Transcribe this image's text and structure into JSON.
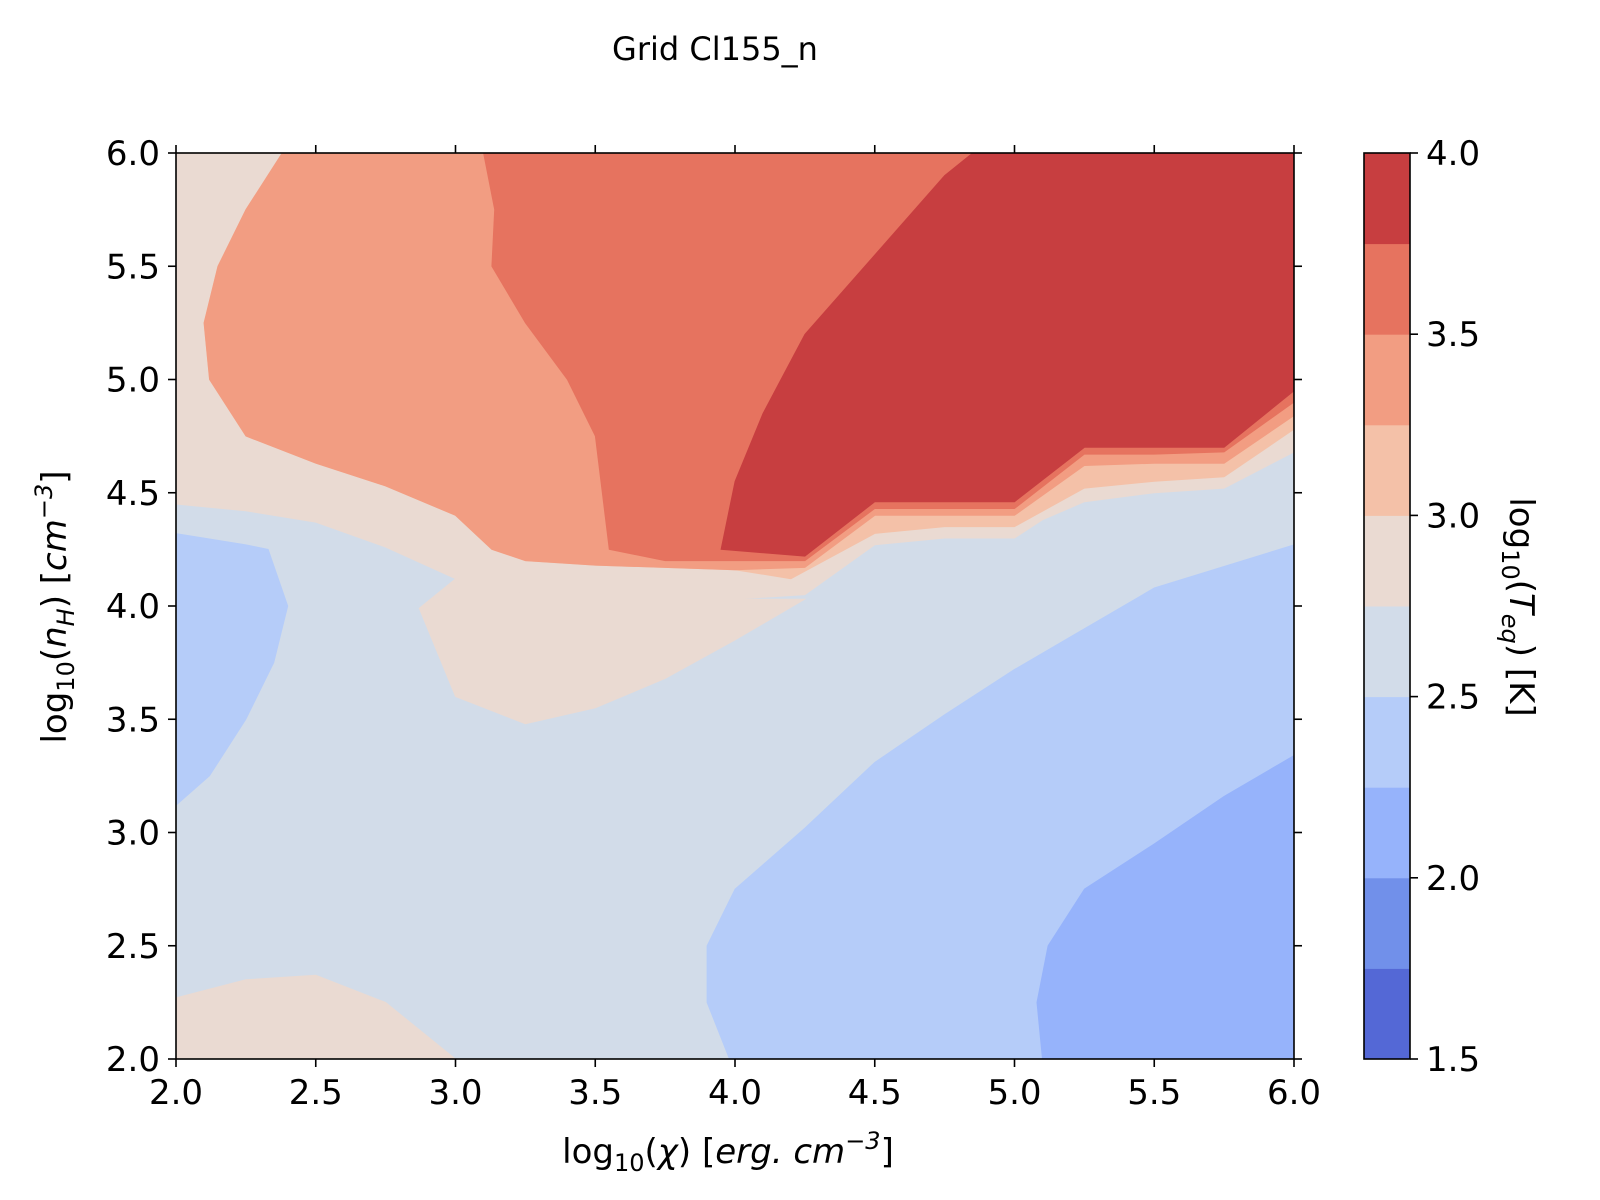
{
  "chart_data": {
    "type": "contour",
    "title": "Grid Cl155_n",
    "xlabel": {
      "base": "log",
      "sub": "10",
      "open": "(",
      "var": "χ",
      "close": ")",
      "unit_open": " [",
      "unit": "erg. cm",
      "sup": "−3",
      "unit_close": "]"
    },
    "ylabel": {
      "base": "log",
      "sub": "10",
      "open": "(",
      "var": "n",
      "var_sub": "H",
      "close": ")",
      "unit_open": " [",
      "unit": "cm",
      "sup": "−3",
      "unit_close": "]"
    },
    "colorbar_label": {
      "base": "log",
      "sub": "10",
      "open": "(",
      "var": "T",
      "var_sub": "eq",
      "close": ")",
      "unit": " [K]"
    },
    "xlim": [
      2.0,
      6.0
    ],
    "ylim": [
      2.0,
      6.0
    ],
    "xticks": [
      "2.0",
      "2.5",
      "3.0",
      "3.5",
      "4.0",
      "4.5",
      "5.0",
      "5.5",
      "6.0"
    ],
    "yticks": [
      "2.0",
      "2.5",
      "3.0",
      "3.5",
      "4.0",
      "4.5",
      "5.0",
      "5.5",
      "6.0"
    ],
    "colorbar_ticks": [
      "1.5",
      "2.0",
      "2.5",
      "3.0",
      "3.5",
      "4.0"
    ],
    "levels": [
      1.5,
      1.75,
      2.0,
      2.25,
      2.5,
      2.75,
      3.0,
      3.25,
      3.5,
      3.75,
      4.0
    ],
    "level_colors": [
      "#5468d6",
      "#7190ea",
      "#96b3fb",
      "#b5ccf9",
      "#d2dce9",
      "#eadad2",
      "#f4c1a8",
      "#f29d82",
      "#e6735f",
      "#c73e40"
    ],
    "regions": [
      {
        "band": 4,
        "points": [
          [
            2.0,
            2.0
          ],
          [
            6.0,
            2.0
          ],
          [
            6.0,
            6.0
          ],
          [
            2.0,
            6.0
          ]
        ]
      },
      {
        "band": 5,
        "points": [
          [
            2.0,
            4.45
          ],
          [
            2.25,
            4.42
          ],
          [
            2.5,
            4.37
          ],
          [
            2.75,
            4.26
          ],
          [
            3.0,
            4.12
          ],
          [
            3.25,
            4.05
          ],
          [
            3.5,
            4.03
          ],
          [
            4.0,
            4.03
          ],
          [
            4.25,
            4.05
          ],
          [
            4.5,
            4.27
          ],
          [
            4.75,
            4.3
          ],
          [
            5.0,
            4.3
          ],
          [
            5.1,
            4.38
          ],
          [
            5.25,
            4.46
          ],
          [
            5.5,
            4.5
          ],
          [
            5.75,
            4.52
          ],
          [
            6.0,
            4.68
          ],
          [
            6.0,
            6.0
          ],
          [
            2.0,
            6.0
          ]
        ]
      },
      {
        "band": 5,
        "points": [
          [
            2.0,
            2.0
          ],
          [
            3.0,
            2.0
          ],
          [
            2.9,
            2.1
          ],
          [
            2.75,
            2.25
          ],
          [
            2.5,
            2.37
          ],
          [
            2.25,
            2.35
          ],
          [
            2.0,
            2.27
          ]
        ]
      },
      {
        "band": 5,
        "points": [
          [
            2.87,
            3.99
          ],
          [
            3.0,
            3.6
          ],
          [
            3.25,
            3.48
          ],
          [
            3.5,
            3.55
          ],
          [
            3.75,
            3.68
          ],
          [
            4.0,
            3.85
          ],
          [
            4.25,
            4.03
          ],
          [
            4.0,
            4.03
          ],
          [
            3.5,
            4.03
          ],
          [
            3.25,
            4.05
          ],
          [
            3.0,
            4.12
          ]
        ]
      },
      {
        "band": 6,
        "points": [
          [
            2.0,
            6.0
          ],
          [
            2.38,
            6.0
          ],
          [
            2.25,
            5.75
          ],
          [
            2.15,
            5.5
          ],
          [
            2.1,
            5.25
          ],
          [
            2.12,
            5.0
          ],
          [
            2.25,
            4.75
          ],
          [
            2.5,
            4.63
          ],
          [
            2.75,
            4.53
          ],
          [
            3.0,
            4.4
          ],
          [
            3.13,
            4.25
          ],
          [
            3.25,
            4.2
          ],
          [
            3.5,
            4.18
          ],
          [
            4.0,
            4.16
          ],
          [
            4.2,
            4.12
          ],
          [
            4.5,
            4.32
          ],
          [
            4.75,
            4.35
          ],
          [
            5.0,
            4.35
          ],
          [
            5.25,
            4.52
          ],
          [
            5.5,
            4.55
          ],
          [
            5.75,
            4.57
          ],
          [
            6.0,
            4.78
          ],
          [
            6.0,
            6.0
          ]
        ]
      },
      {
        "band": 7,
        "points": [
          [
            2.38,
            6.0
          ],
          [
            2.25,
            5.75
          ],
          [
            2.15,
            5.5
          ],
          [
            2.1,
            5.25
          ],
          [
            2.12,
            5.0
          ],
          [
            2.25,
            4.75
          ],
          [
            2.5,
            4.63
          ],
          [
            2.75,
            4.53
          ],
          [
            3.0,
            4.4
          ],
          [
            3.13,
            4.25
          ],
          [
            3.25,
            4.2
          ],
          [
            3.5,
            4.18
          ],
          [
            4.0,
            4.16
          ],
          [
            4.25,
            4.17
          ],
          [
            4.5,
            4.4
          ],
          [
            4.75,
            4.4
          ],
          [
            5.0,
            4.4
          ],
          [
            5.25,
            4.62
          ],
          [
            5.5,
            4.63
          ],
          [
            5.75,
            4.63
          ],
          [
            6.0,
            4.84
          ],
          [
            6.0,
            6.0
          ]
        ]
      },
      {
        "band": 8,
        "points": [
          [
            3.1,
            6.0
          ],
          [
            3.14,
            5.75
          ],
          [
            3.13,
            5.5
          ],
          [
            3.25,
            5.25
          ],
          [
            3.4,
            5.0
          ],
          [
            3.5,
            4.75
          ],
          [
            3.55,
            4.25
          ],
          [
            3.75,
            4.2
          ],
          [
            4.0,
            4.2
          ],
          [
            4.25,
            4.2
          ],
          [
            4.5,
            4.43
          ],
          [
            4.75,
            4.43
          ],
          [
            5.0,
            4.43
          ],
          [
            5.25,
            4.67
          ],
          [
            5.5,
            4.67
          ],
          [
            5.75,
            4.68
          ],
          [
            6.0,
            4.9
          ],
          [
            6.0,
            6.0
          ]
        ]
      },
      {
        "band": 9,
        "points": [
          [
            4.85,
            6.0
          ],
          [
            4.75,
            5.9
          ],
          [
            4.5,
            5.55
          ],
          [
            4.25,
            5.2
          ],
          [
            4.1,
            4.85
          ],
          [
            4.0,
            4.55
          ],
          [
            3.95,
            4.25
          ],
          [
            4.25,
            4.22
          ],
          [
            4.5,
            4.46
          ],
          [
            5.0,
            4.46
          ],
          [
            5.25,
            4.7
          ],
          [
            5.75,
            4.7
          ],
          [
            6.0,
            4.95
          ],
          [
            6.0,
            6.0
          ]
        ]
      },
      {
        "band": 3,
        "points": [
          [
            2.0,
            3.12
          ],
          [
            2.12,
            3.25
          ],
          [
            2.25,
            3.5
          ],
          [
            2.35,
            3.75
          ],
          [
            2.4,
            4.0
          ],
          [
            2.33,
            4.25
          ],
          [
            2.25,
            4.27
          ],
          [
            2.0,
            4.32
          ]
        ]
      },
      {
        "band": 3,
        "points": [
          [
            3.98,
            2.0
          ],
          [
            6.0,
            2.0
          ],
          [
            6.0,
            4.27
          ],
          [
            5.5,
            4.08
          ],
          [
            5.0,
            3.72
          ],
          [
            4.75,
            3.52
          ],
          [
            4.5,
            3.31
          ],
          [
            4.25,
            3.02
          ],
          [
            4.0,
            2.75
          ],
          [
            3.9,
            2.5
          ],
          [
            3.9,
            2.25
          ]
        ]
      },
      {
        "band": 2,
        "points": [
          [
            5.1,
            2.0
          ],
          [
            6.0,
            2.0
          ],
          [
            6.0,
            3.34
          ],
          [
            5.75,
            3.16
          ],
          [
            5.5,
            2.95
          ],
          [
            5.25,
            2.75
          ],
          [
            5.12,
            2.5
          ],
          [
            5.08,
            2.25
          ]
        ]
      }
    ]
  }
}
